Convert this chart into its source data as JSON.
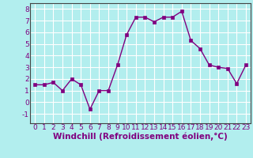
{
  "x": [
    0,
    1,
    2,
    3,
    4,
    5,
    6,
    7,
    8,
    9,
    10,
    11,
    12,
    13,
    14,
    15,
    16,
    17,
    18,
    19,
    20,
    21,
    22,
    23
  ],
  "y": [
    1.5,
    1.5,
    1.7,
    1.0,
    2.0,
    1.5,
    -0.6,
    1.0,
    1.0,
    3.2,
    5.8,
    7.3,
    7.3,
    6.9,
    7.3,
    7.3,
    7.8,
    5.3,
    4.6,
    3.2,
    3.0,
    2.9,
    1.6,
    3.2
  ],
  "line_color": "#800080",
  "marker_color": "#800080",
  "bg_color": "#b2eeee",
  "grid_color": "#ffffff",
  "tick_color": "#800080",
  "xlabel": "Windchill (Refroidissement éolien,°C)",
  "xlabel_color": "#800080",
  "ylim": [
    -1.8,
    8.5
  ],
  "xlim": [
    -0.5,
    23.5
  ],
  "yticks": [
    -1,
    0,
    1,
    2,
    3,
    4,
    5,
    6,
    7,
    8
  ],
  "xticks": [
    0,
    1,
    2,
    3,
    4,
    5,
    6,
    7,
    8,
    9,
    10,
    11,
    12,
    13,
    14,
    15,
    16,
    17,
    18,
    19,
    20,
    21,
    22,
    23
  ],
  "tick_label_fontsize": 6.5,
  "xlabel_fontsize": 7.5,
  "line_width": 1.0,
  "marker_size": 2.5
}
